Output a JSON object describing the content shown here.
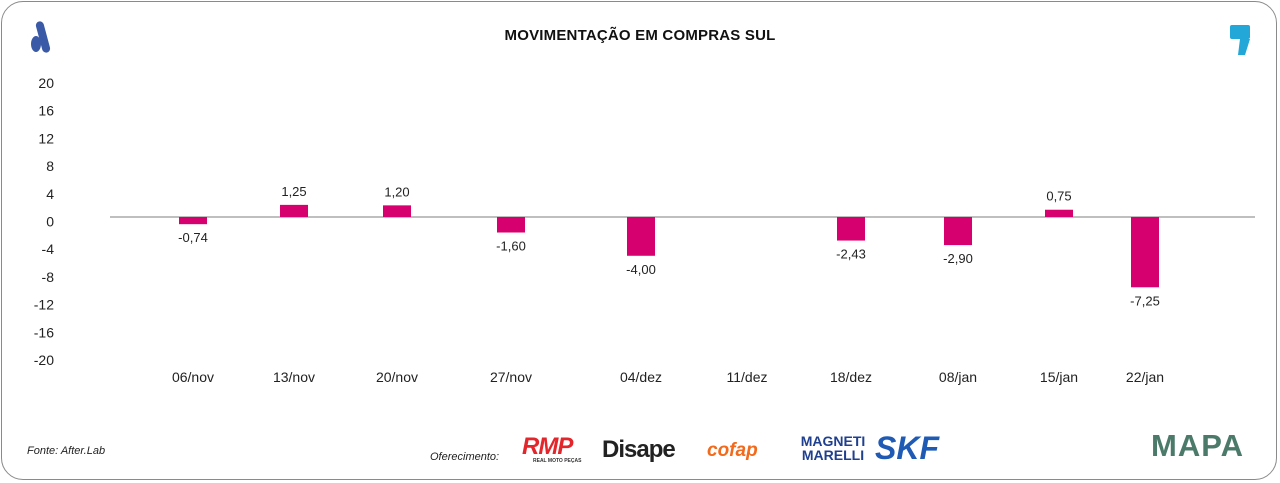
{
  "header": {
    "title": "MOVIMENTAÇÃO EM COMPRAS SUL"
  },
  "footer": {
    "source": "Fonte: After.Lab",
    "offering_label": "Oferecimento:",
    "sponsors": [
      "RMP",
      "Disape",
      "cofap",
      "MAGNETI MARELLI",
      "SKF"
    ],
    "rmp_sub": "REAL MOTO PEÇAS",
    "brand": "MAPA"
  },
  "colors": {
    "bar": "#d6006f",
    "zero_line": "#999999",
    "logo_a": "#3a5aa8",
    "logo_comma": "#23a6d8"
  },
  "chart_data": {
    "type": "bar",
    "title": "MOVIMENTAÇÃO EM COMPRAS SUL",
    "categories": [
      "06/nov",
      "13/nov",
      "20/nov",
      "27/nov",
      "04/dez",
      "11/dez",
      "18/dez",
      "08/jan",
      "15/jan",
      "22/jan"
    ],
    "values": [
      -0.74,
      1.25,
      1.2,
      -1.6,
      -4.0,
      null,
      -2.43,
      -2.9,
      0.75,
      -7.25
    ],
    "labels": [
      "-0,74",
      "1,25",
      "1,20",
      "-1,60",
      "-4,00",
      "",
      "-2,43",
      "-2,90",
      "0,75",
      "-7,25"
    ],
    "yticks": [
      "20",
      "16",
      "12",
      "8",
      "4",
      "0",
      "-4",
      "-8",
      "-12",
      "-16",
      "-20"
    ],
    "ylim": [
      -20,
      20
    ],
    "xlabel": "",
    "ylabel": "",
    "grid": false,
    "legend": "none"
  }
}
